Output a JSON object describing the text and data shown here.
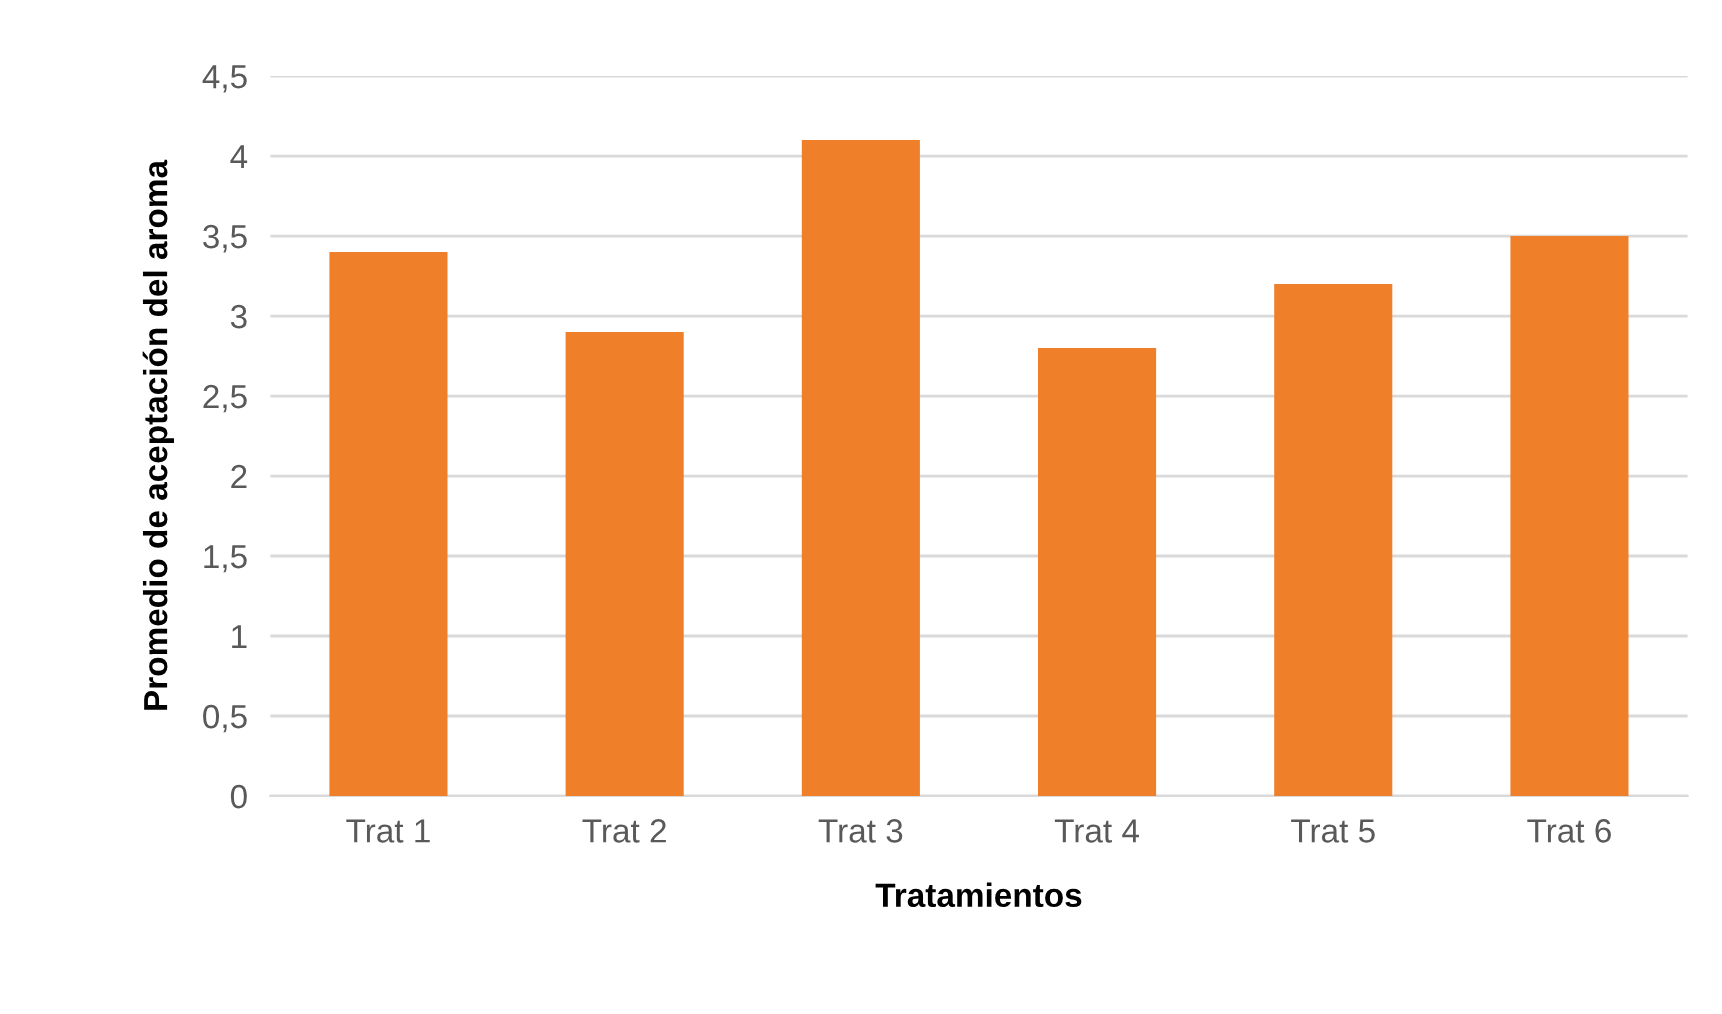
{
  "chart_data": {
    "type": "bar",
    "xlabel": "Tratamientos",
    "ylabel": "Promedio de aceptación del aroma",
    "categories": [
      "Trat 1",
      "Trat 2",
      "Trat 3",
      "Trat 4",
      "Trat 5",
      "Trat 6"
    ],
    "values": [
      3.4,
      2.9,
      4.1,
      2.8,
      3.2,
      3.5
    ],
    "color": "#f07f2a",
    "ylim": [
      0,
      4.5
    ],
    "yticks": [
      0,
      {
        "value": 0.5,
        "label": "0,5"
      },
      1,
      {
        "value": 1.5,
        "label": "1,5"
      },
      2,
      {
        "value": 2.5,
        "label": "2,5"
      },
      3,
      {
        "value": 3.5,
        "label": "3,5"
      },
      4,
      {
        "value": 4.5,
        "label": "4,5"
      }
    ],
    "grid": "y"
  }
}
